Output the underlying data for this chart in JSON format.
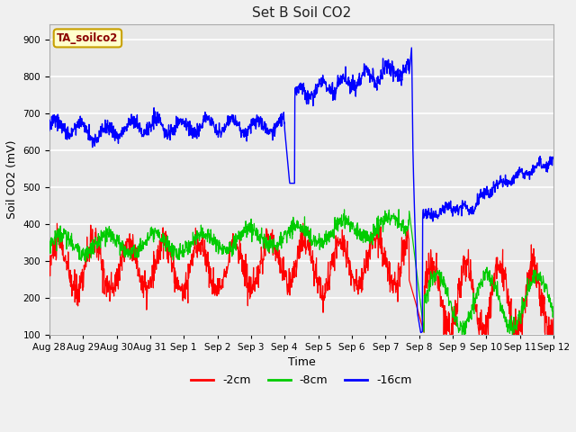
{
  "title": "Set B Soil CO2",
  "ylabel": "Soil CO2 (mV)",
  "xlabel": "Time",
  "ylim": [
    100,
    940
  ],
  "yticks": [
    100,
    200,
    300,
    400,
    500,
    600,
    700,
    800,
    900
  ],
  "legend_label": "TA_soilco2",
  "series_labels": [
    "-2cm",
    "-8cm",
    "-16cm"
  ],
  "series_colors": [
    "#ff0000",
    "#00cc00",
    "#0000ff"
  ],
  "fig_bg_color": "#f0f0f0",
  "plot_bg_color": "#e8e8e8",
  "grid_color": "#ffffff",
  "title_fontsize": 11,
  "axis_fontsize": 9,
  "tick_fontsize": 7.5,
  "num_points": 1500,
  "xtick_labels": [
    "Aug 28",
    "Aug 29",
    "Aug 30",
    "Aug 31",
    "Sep 1",
    "Sep 2",
    "Sep 3",
    "Sep 4",
    "Sep 5",
    "Sep 6",
    "Sep 7",
    "Sep 8",
    "Sep 9",
    "Sep 10",
    "Sep 11",
    "Sep 12"
  ]
}
